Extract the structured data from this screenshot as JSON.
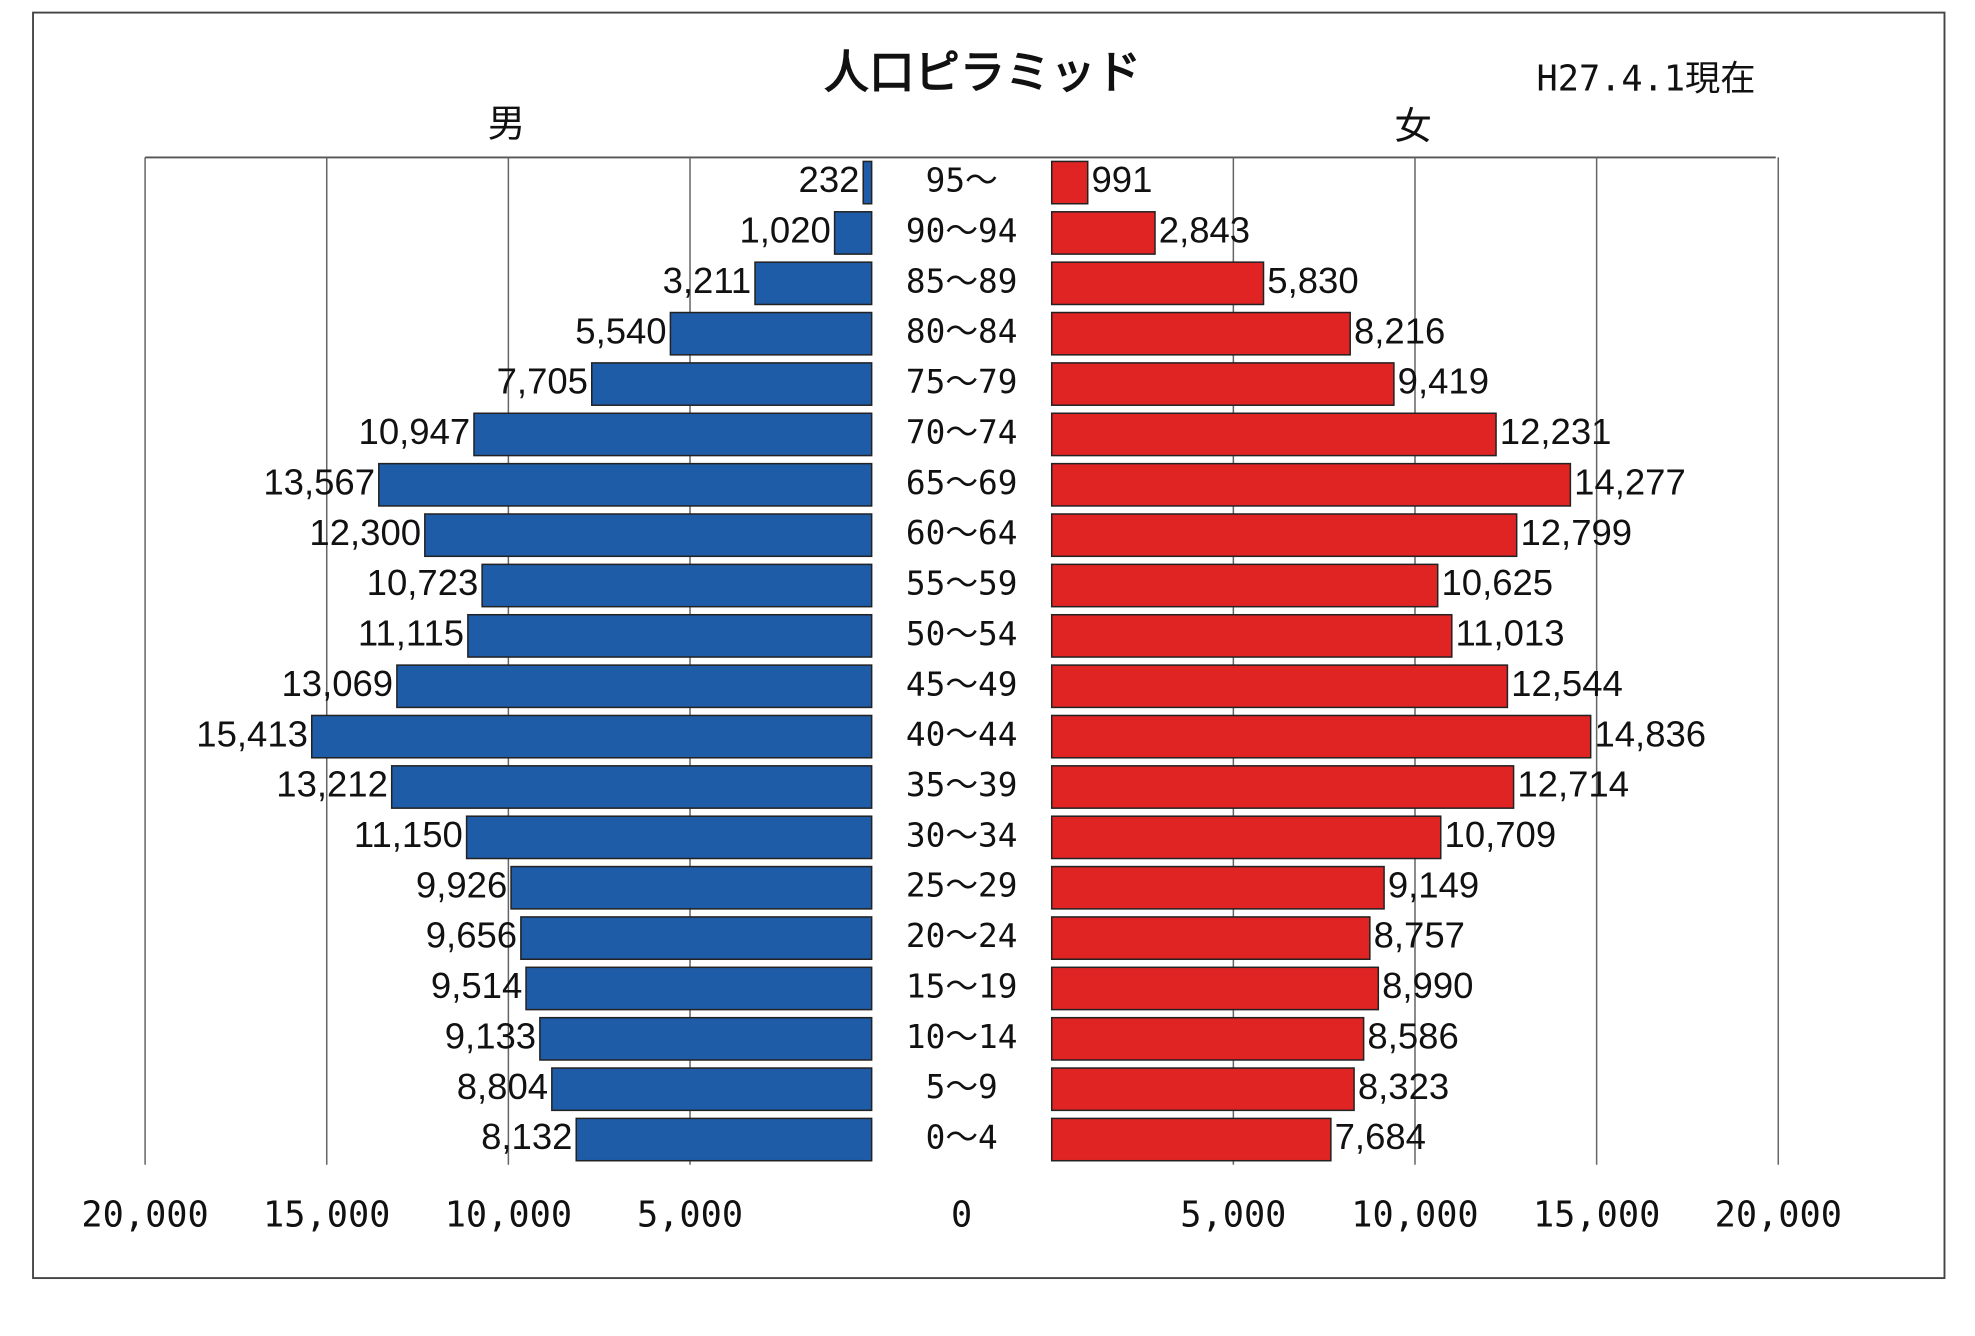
{
  "chart_data": {
    "type": "pyramid",
    "title": "人口ピラミッド",
    "subtitle": "H27.4.1現在",
    "categories": [
      "95～",
      "90～94",
      "85～89",
      "80～84",
      "75～79",
      "70～74",
      "65～69",
      "60～64",
      "55～59",
      "50～54",
      "45～49",
      "40～44",
      "35～39",
      "30～34",
      "25～29",
      "20～24",
      "15～19",
      "10～14",
      "5～9",
      "0～4"
    ],
    "series": [
      {
        "name": "男",
        "color": "#1f5ca8",
        "values": [
          232,
          1020,
          3211,
          5540,
          7705,
          10947,
          13567,
          12300,
          10723,
          11115,
          13069,
          15413,
          13212,
          11150,
          9926,
          9656,
          9514,
          9133,
          8804,
          8132
        ],
        "value_labels": [
          "232",
          "1,020",
          "3,211",
          "5,540",
          "7,705",
          "10,947",
          "13,567",
          "12,300",
          "10,723",
          "11,115",
          "13,069",
          "15,413",
          "13,212",
          "11,150",
          "9,926",
          "9,656",
          "9,514",
          "9,133",
          "8,804",
          "8,132"
        ]
      },
      {
        "name": "女",
        "color": "#e02424",
        "values": [
          991,
          2843,
          5830,
          8216,
          9419,
          12231,
          14277,
          12799,
          10625,
          11013,
          12544,
          14836,
          12714,
          10709,
          9149,
          8757,
          8990,
          8586,
          8323,
          7684
        ],
        "value_labels": [
          "991",
          "2,843",
          "5,830",
          "8,216",
          "9,419",
          "12,231",
          "14,277",
          "12,799",
          "10,625",
          "11,013",
          "12,544",
          "14,836",
          "12,714",
          "10,709",
          "9,149",
          "8,757",
          "8,990",
          "8,586",
          "8,323",
          "7,684"
        ]
      }
    ],
    "xlim": [
      0,
      20000
    ],
    "xticks": [
      0,
      {
        "value": 5000,
        "label": "5,000"
      },
      {
        "value": 10000,
        "label": "10,000"
      },
      {
        "value": 15000,
        "label": "15,000"
      },
      {
        "value": 20000,
        "label": "20,000"
      }
    ],
    "grid": true
  }
}
